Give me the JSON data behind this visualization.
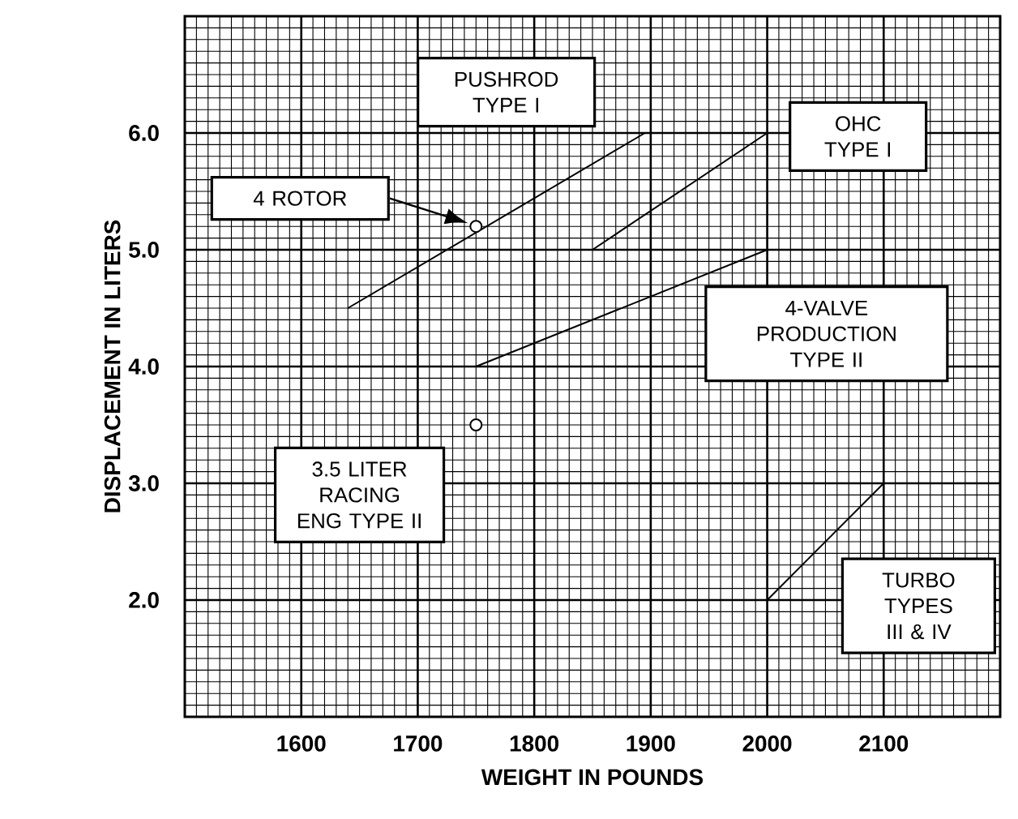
{
  "chart_data": {
    "type": "line",
    "xlabel": "WEIGHT IN POUNDS",
    "ylabel": "DISPLACEMENT IN LITERS",
    "xlim": [
      1500,
      2200
    ],
    "ylim": [
      1,
      7
    ],
    "xticks": [
      1600,
      1700,
      1800,
      1900,
      2000,
      2100
    ],
    "yticks": [
      {
        "value": 2,
        "label": "2.0"
      },
      {
        "value": 3,
        "label": "3.0"
      },
      {
        "value": 4,
        "label": "4.0"
      },
      {
        "value": 5,
        "label": "5.0"
      },
      {
        "value": 6,
        "label": "6.0"
      }
    ],
    "grid": true,
    "series": [
      {
        "name": "PUSHROD TYPE I",
        "color": "#000000",
        "x": [
          1640,
          1895
        ],
        "values": [
          4.5,
          6.0
        ],
        "marker": "none"
      },
      {
        "name": "OHC TYPE I",
        "color": "#000000",
        "x": [
          1850,
          2000
        ],
        "values": [
          5.0,
          6.0
        ],
        "marker": "none"
      },
      {
        "name": "4-VALVE PRODUCTION TYPE II",
        "color": "#000000",
        "x": [
          1750,
          2000
        ],
        "values": [
          4.0,
          5.0
        ],
        "marker": "none"
      },
      {
        "name": "TURBO TYPES III & IV",
        "color": "#000000",
        "x": [
          2000,
          2100
        ],
        "values": [
          2.0,
          3.0
        ],
        "marker": "none"
      },
      {
        "type": "scatter",
        "name": "4 ROTOR",
        "color": "#000000",
        "x": [
          1750
        ],
        "values": [
          5.2
        ],
        "marker": "circle"
      },
      {
        "type": "scatter",
        "name": "3.5 LITER RACING ENG TYPE II",
        "color": "#000000",
        "x": [
          1750
        ],
        "values": [
          3.5
        ],
        "marker": "circle"
      }
    ]
  }
}
